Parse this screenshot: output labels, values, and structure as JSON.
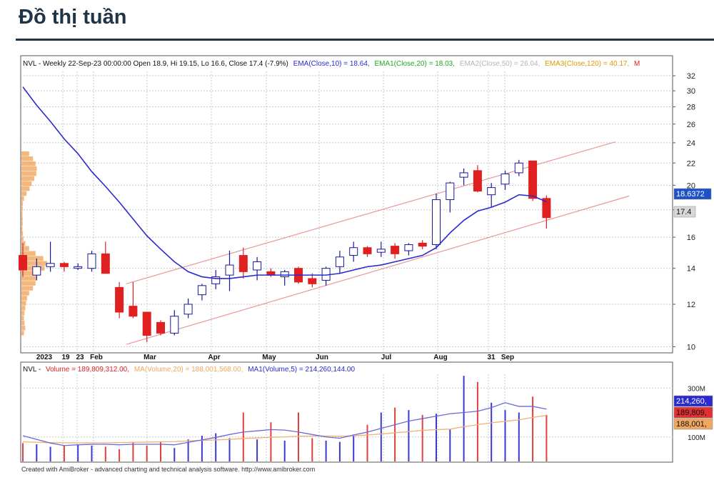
{
  "page_title": "Đồ thị tuần",
  "footer": "Created with AmiBroker - advanced charting and technical analysis software. http://www.amibroker.com",
  "price_header": {
    "prefix": "NVL - Weekly 22-Sep-23 00:00:00 Open 18.9, Hi 19.15, Lo 16.6, Close 17.4 (-7.9%)",
    "ema10": "EMA(Close,10) = 18.64,",
    "ema20": "EMA1(Close,20) = 18.03,",
    "ema50": "EMA2(Close,50) = 26.04,",
    "ema120": "EMA3(Close,120) = 40.17,",
    "tail": "M"
  },
  "volume_header": {
    "prefix": "NVL -",
    "volume": "Volume = 189,809,312.00,",
    "ma20": "MA(Volume,20) = 188,001,568.00,",
    "ma5": "MA1(Volume,5) = 214,260,144.00"
  },
  "colors": {
    "up_body": "#ffffff",
    "up_border": "#1a1a9c",
    "down": "#e02020",
    "ema10": "#2a2ad0",
    "ema20_label": "#22aa22",
    "ema50_label": "#bbbbbb",
    "ema120_label": "#e0a000",
    "channel": "#e89898",
    "vol_up": "#3a3ad0",
    "vol_down": "#e04040",
    "ma20": "#f0b070",
    "ma5": "#6a6ad8",
    "profile": "#f0a050",
    "grid": "#c8c8c8"
  },
  "chart_data": [
    {
      "type": "candlestick",
      "scale": "log",
      "ylim": [
        9.8,
        32.6
      ],
      "yticks": [
        10,
        12,
        14,
        16,
        18,
        20,
        22,
        24,
        26,
        28,
        30,
        32
      ],
      "x_labels": [
        "2023",
        "19",
        "23",
        "Feb",
        "Mar",
        "Apr",
        "May",
        "Jun",
        "Jul",
        "Aug",
        "31",
        "Sep"
      ],
      "last_value_labels": [
        "18.6372",
        "17.4"
      ],
      "candles": [
        {
          "o": 14.8,
          "h": 15.6,
          "l": 13.5,
          "c": 13.9
        },
        {
          "o": 13.6,
          "h": 14.6,
          "l": 13.3,
          "c": 14.1
        },
        {
          "o": 14.1,
          "h": 15.7,
          "l": 13.8,
          "c": 14.3
        },
        {
          "o": 14.3,
          "h": 14.4,
          "l": 13.8,
          "c": 14.1
        },
        {
          "o": 14.0,
          "h": 14.3,
          "l": 13.9,
          "c": 14.1
        },
        {
          "o": 14.0,
          "h": 15.1,
          "l": 13.8,
          "c": 14.9
        },
        {
          "o": 14.9,
          "h": 15.7,
          "l": 13.7,
          "c": 13.7
        },
        {
          "o": 12.9,
          "h": 13.2,
          "l": 11.3,
          "c": 11.6
        },
        {
          "o": 11.9,
          "h": 13.2,
          "l": 11.3,
          "c": 11.4
        },
        {
          "o": 11.6,
          "h": 11.6,
          "l": 10.2,
          "c": 10.5
        },
        {
          "o": 11.1,
          "h": 11.2,
          "l": 10.5,
          "c": 10.6
        },
        {
          "o": 10.6,
          "h": 11.7,
          "l": 10.5,
          "c": 11.4
        },
        {
          "o": 11.5,
          "h": 12.3,
          "l": 11.3,
          "c": 12.0
        },
        {
          "o": 12.5,
          "h": 13.1,
          "l": 12.2,
          "c": 13.0
        },
        {
          "o": 13.1,
          "h": 13.9,
          "l": 12.8,
          "c": 13.5
        },
        {
          "o": 13.6,
          "h": 15.1,
          "l": 12.7,
          "c": 14.2
        },
        {
          "o": 14.8,
          "h": 15.3,
          "l": 13.4,
          "c": 13.8
        },
        {
          "o": 13.9,
          "h": 14.7,
          "l": 13.3,
          "c": 14.4
        },
        {
          "o": 13.8,
          "h": 14.0,
          "l": 13.5,
          "c": 13.6
        },
        {
          "o": 13.5,
          "h": 13.9,
          "l": 13.0,
          "c": 13.8
        },
        {
          "o": 14.0,
          "h": 14.1,
          "l": 13.1,
          "c": 13.2
        },
        {
          "o": 13.4,
          "h": 13.7,
          "l": 12.9,
          "c": 13.1
        },
        {
          "o": 13.3,
          "h": 14.1,
          "l": 13.0,
          "c": 14.0
        },
        {
          "o": 14.1,
          "h": 15.1,
          "l": 13.7,
          "c": 14.7
        },
        {
          "o": 14.8,
          "h": 15.7,
          "l": 14.4,
          "c": 15.3
        },
        {
          "o": 15.3,
          "h": 15.4,
          "l": 14.7,
          "c": 14.9
        },
        {
          "o": 15.0,
          "h": 15.7,
          "l": 14.7,
          "c": 15.2
        },
        {
          "o": 15.4,
          "h": 15.6,
          "l": 14.6,
          "c": 14.9
        },
        {
          "o": 15.1,
          "h": 15.6,
          "l": 14.8,
          "c": 15.5
        },
        {
          "o": 15.6,
          "h": 15.8,
          "l": 15.2,
          "c": 15.4
        },
        {
          "o": 15.5,
          "h": 19.3,
          "l": 15.2,
          "c": 18.8
        },
        {
          "o": 18.8,
          "h": 20.3,
          "l": 17.8,
          "c": 20.2
        },
        {
          "o": 20.7,
          "h": 21.5,
          "l": 20.0,
          "c": 21.1
        },
        {
          "o": 21.3,
          "h": 21.8,
          "l": 19.4,
          "c": 19.5
        },
        {
          "o": 19.2,
          "h": 20.2,
          "l": 18.2,
          "c": 19.8
        },
        {
          "o": 20.1,
          "h": 21.3,
          "l": 19.6,
          "c": 21.0
        },
        {
          "o": 21.1,
          "h": 22.3,
          "l": 20.8,
          "c": 22.0
        },
        {
          "o": 22.2,
          "h": 22.2,
          "l": 18.7,
          "c": 18.9
        },
        {
          "o": 18.9,
          "h": 19.15,
          "l": 16.6,
          "c": 17.4
        }
      ],
      "ema10": [
        30.5,
        28.2,
        26.3,
        24.4,
        22.9,
        21.2,
        19.9,
        18.6,
        17.3,
        16.1,
        15.2,
        14.4,
        13.8,
        13.5,
        13.4,
        13.4,
        13.5,
        13.6,
        13.6,
        13.6,
        13.6,
        13.6,
        13.6,
        13.7,
        13.9,
        14.1,
        14.2,
        14.4,
        14.6,
        14.8,
        15.3,
        16.3,
        17.2,
        17.9,
        18.2,
        18.6,
        19.2,
        19.1,
        18.64
      ],
      "channel": {
        "upper": {
          "start": 13.1,
          "end": 24.1,
          "i0": 7.5,
          "i1": 43.0
        },
        "lower": {
          "start": 10.1,
          "end": 19.1,
          "i0": 7.5,
          "i1": 44.0
        }
      },
      "volume_profile": [
        0.3,
        0.45,
        0.55,
        0.6,
        0.58,
        0.5,
        0.4,
        0.32,
        0.2,
        0.1,
        0.06,
        0.05,
        0.04,
        0.05,
        0.05,
        0.04,
        0.06,
        0.08,
        0.15,
        0.3,
        0.55,
        0.85,
        1.0,
        0.9,
        0.75,
        0.6,
        0.55,
        0.45,
        0.3,
        0.22,
        0.18,
        0.15,
        0.12,
        0.1,
        0.12,
        0.15,
        0.1
      ]
    },
    {
      "type": "bar",
      "scale": "linear",
      "ylim": [
        0,
        400
      ],
      "yticks": [
        100,
        300
      ],
      "ytick_labels": [
        "100M",
        "300M"
      ],
      "unit": "M",
      "last_value_labels": [
        "214,260,",
        "189,809,",
        "188,001,"
      ],
      "volume": [
        75,
        70,
        60,
        65,
        70,
        65,
        60,
        50,
        80,
        65,
        80,
        55,
        90,
        105,
        115,
        95,
        200,
        90,
        160,
        85,
        200,
        95,
        85,
        80,
        110,
        150,
        200,
        220,
        210,
        190,
        195,
        130,
        350,
        325,
        240,
        210,
        200,
        265,
        190
      ],
      "ma20": [
        80,
        78,
        77,
        76,
        76,
        76,
        76,
        77,
        78,
        79,
        80,
        81,
        84,
        86,
        88,
        90,
        94,
        96,
        99,
        100,
        103,
        104,
        104,
        103,
        105,
        108,
        112,
        117,
        122,
        127,
        130,
        132,
        142,
        150,
        158,
        164,
        170,
        180,
        188
      ],
      "ma5": [
        105,
        90,
        75,
        65,
        68,
        70,
        70,
        68,
        70,
        70,
        70,
        68,
        78,
        88,
        98,
        110,
        120,
        125,
        130,
        128,
        120,
        110,
        100,
        95,
        108,
        120,
        135,
        150,
        165,
        175,
        185,
        195,
        200,
        205,
        220,
        240,
        225,
        225,
        214
      ]
    }
  ]
}
